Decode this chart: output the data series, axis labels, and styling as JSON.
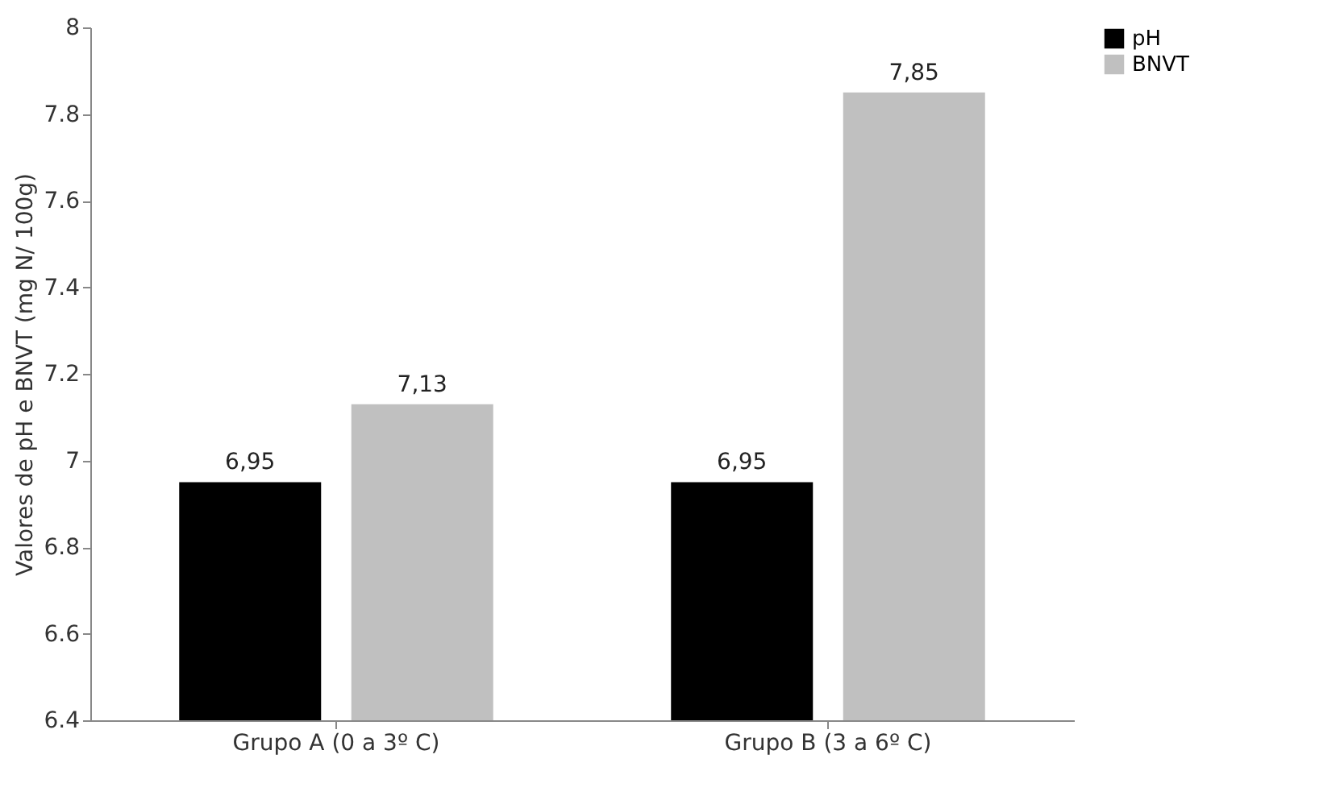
{
  "chart_data": {
    "type": "bar",
    "ylabel": "Valores de pH e BNVT (mg N/ 100g)",
    "categories": [
      "Grupo A (0 a 3º C)",
      "Grupo B (3 a 6º C)"
    ],
    "series": [
      {
        "name": "pH",
        "color": "#000000",
        "values": [
          6.95,
          6.95
        ],
        "value_labels": [
          "6,95",
          "6,95"
        ]
      },
      {
        "name": "BNVT",
        "color": "#c0c0c0",
        "values": [
          7.13,
          7.85
        ],
        "value_labels": [
          "7,13",
          "7,85"
        ]
      }
    ],
    "ylim": [
      6.4,
      8
    ],
    "yticks": [
      6.4,
      6.6,
      6.8,
      7,
      7.2,
      7.4,
      7.6,
      7.8,
      8
    ],
    "grid": false,
    "legend": "right"
  }
}
